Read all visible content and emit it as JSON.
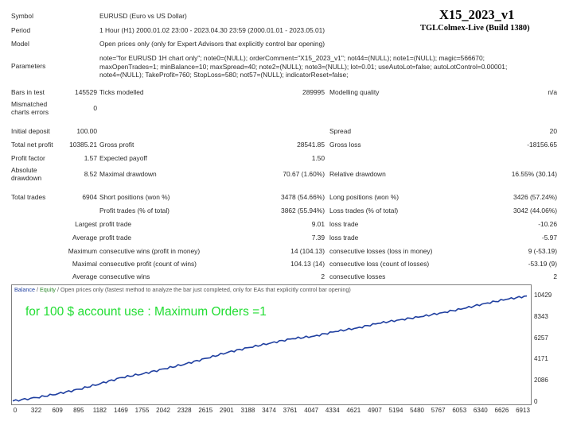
{
  "header": {
    "title": "X15_2023_v1",
    "subtitle": "TGLColmex-Live (Build 1380)"
  },
  "info": {
    "symbol_label": "Symbol",
    "symbol_value": "EURUSD (Euro vs US Dollar)",
    "period_label": "Period",
    "period_value": "1 Hour (H1) 2000.01.02 23:00 - 2023.04.30 23:59 (2000.01.01 - 2023.05.01)",
    "model_label": "Model",
    "model_value": "Open prices only (only for Expert Advisors that explicitly control bar opening)",
    "parameters_label": "Parameters",
    "parameters_lines": [
      "note=\"for EURUSD 1H chart only\"; note0=(NULL); orderComment=\"X15_2023_v1\"; not44=(NULL); note1=(NULL); magic=566670;",
      "maxOpenTrades=1; minBalance=10; maxSpread=40; note2=(NULL); note3=(NULL); lot=0.01; useAutoLot=false; autoLotControl=0.00001;",
      "note4=(NULL); TakeProfit=760; StopLoss=580; not57=(NULL); indicatorReset=false;"
    ]
  },
  "stats": {
    "bars_label": "Bars in test",
    "bars_value": "145529",
    "ticks_label": "Ticks modelled",
    "ticks_value": "289995",
    "quality_label": "Modelling quality",
    "quality_value": "n/a",
    "mismatch_label_1": "Mismatched",
    "mismatch_label_2": "charts errors",
    "mismatch_value": "0",
    "deposit_label": "Initial deposit",
    "deposit_value": "100.00",
    "spread_label": "Spread",
    "spread_value": "20",
    "netprofit_label": "Total net profit",
    "netprofit_value": "10385.21",
    "grossprofit_label": "Gross profit",
    "grossprofit_value": "28541.85",
    "grossloss_label": "Gross loss",
    "grossloss_value": "-18156.65",
    "pf_label": "Profit factor",
    "pf_value": "1.57",
    "payoff_label": "Expected payoff",
    "payoff_value": "1.50",
    "absdd_label_1": "Absolute",
    "absdd_label_2": "drawdown",
    "absdd_value": "8.52",
    "maxdd_label": "Maximal drawdown",
    "maxdd_value": "70.67 (1.60%)",
    "reldd_label": "Relative drawdown",
    "reldd_value": "16.55% (30.14)",
    "trades_label": "Total trades",
    "trades_value": "6904",
    "short_label": "Short positions (won %)",
    "short_value": "3478 (54.66%)",
    "long_label": "Long positions (won %)",
    "long_value": "3426 (57.24%)",
    "profit_trades_label": "Profit trades (% of total)",
    "profit_trades_value": "3862 (55.94%)",
    "loss_trades_label": "Loss trades (% of total)",
    "loss_trades_value": "3042 (44.06%)",
    "largest_label": "Largest",
    "largest_profit_label": "profit trade",
    "largest_profit_value": "9.01",
    "largest_loss_label": "loss trade",
    "largest_loss_value": "-10.26",
    "average_label": "Average",
    "average_profit_label": "profit trade",
    "average_profit_value": "7.39",
    "average_loss_label": "loss trade",
    "average_loss_value": "-5.97",
    "maximum_label": "Maximum",
    "max_wins_label": "consecutive wins (profit in money)",
    "max_wins_value": "14 (104.13)",
    "max_losses_label": "consecutive losses (loss in money)",
    "max_losses_value": "9 (-53.19)",
    "maximal_label": "Maximal",
    "maximal_profit_label": "consecutive profit (count of wins)",
    "maximal_profit_value": "104.13 (14)",
    "maximal_loss_label": "consecutive loss (count of losses)",
    "maximal_loss_value": "-53.19 (9)",
    "avg_consec_label": "Average",
    "avg_wins_label": "consecutive wins",
    "avg_wins_value": "2",
    "avg_losses_label": "consecutive losses",
    "avg_losses_value": "2"
  },
  "chart": {
    "legend_balance": "Balance",
    "legend_sep": " / ",
    "legend_equity": "Equity",
    "legend_rest": " / Open prices only (fastest method to analyze the bar just completed, only for EAs that explicitly control bar opening)",
    "note": "for 100 $ account use : Maximum Orders =1",
    "colors": {
      "balance": "#1f3fa0",
      "equity": "#2e8b2e",
      "note": "#22dd33"
    }
  },
  "chart_data": {
    "type": "line",
    "title": "",
    "xlabel": "",
    "ylabel": "",
    "x_ticks": [
      "0",
      "322",
      "609",
      "895",
      "1182",
      "1469",
      "1755",
      "2042",
      "2328",
      "2615",
      "2901",
      "3188",
      "3474",
      "3761",
      "4047",
      "4334",
      "4621",
      "4907",
      "5194",
      "5480",
      "5767",
      "6053",
      "6340",
      "6626",
      "6913"
    ],
    "y_ticks": [
      "10429",
      "8343",
      "6257",
      "4171",
      "2086",
      "0"
    ],
    "xlim": [
      0,
      6904
    ],
    "ylim": [
      0,
      10429
    ],
    "series": [
      {
        "name": "Balance",
        "x": [
          0,
          322,
          609,
          895,
          1182,
          1469,
          1755,
          2042,
          2328,
          2615,
          2901,
          3188,
          3474,
          3761,
          4047,
          4334,
          4621,
          4907,
          5194,
          5480,
          5767,
          6053,
          6340,
          6626,
          6904
        ],
        "values": [
          100,
          430,
          820,
          1250,
          1820,
          2400,
          2780,
          3250,
          3750,
          4300,
          4900,
          5350,
          5800,
          6200,
          6450,
          6900,
          7250,
          7700,
          8050,
          8350,
          8750,
          9150,
          9650,
          10050,
          10385
        ]
      }
    ]
  }
}
